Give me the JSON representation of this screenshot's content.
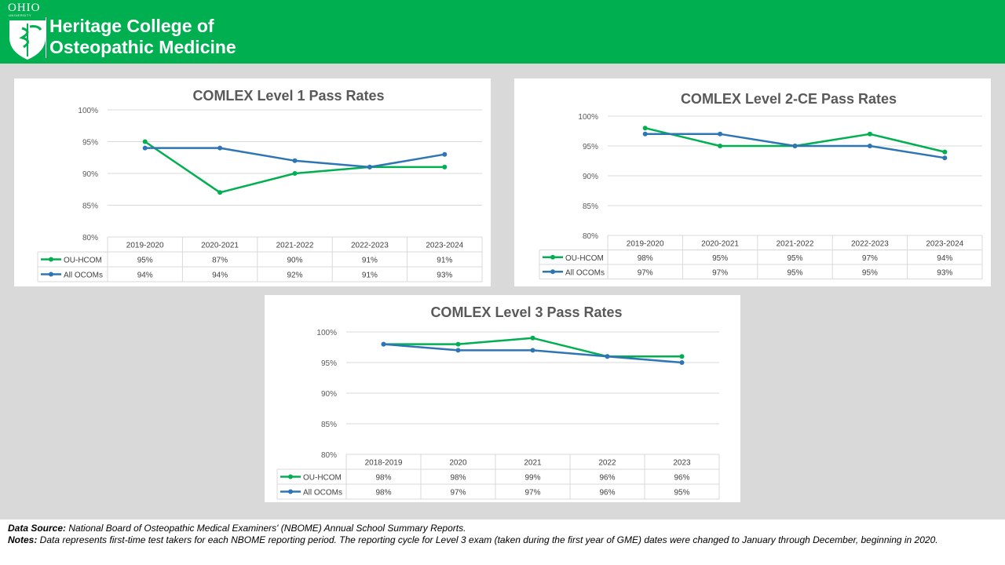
{
  "header": {
    "university": "OHIO",
    "university_sub": "UNIVERSITY",
    "college_line1": "Heritage College of",
    "college_line2": "Osteopathic Medicine"
  },
  "colors": {
    "header_green": "#00b050",
    "ou_hcom": "#00b050",
    "all_ocoms": "#2e75b6"
  },
  "chart_data": [
    {
      "type": "line",
      "title": "COMLEX Level 1 Pass Rates",
      "categories": [
        "2019-2020",
        "2020-2021",
        "2021-2022",
        "2022-2023",
        "2023-2024"
      ],
      "ylim": [
        80,
        100
      ],
      "yticks": [
        "80%",
        "85%",
        "90%",
        "95%",
        "100%"
      ],
      "grid": true,
      "legend": "data-table",
      "series": [
        {
          "name": "OU-HCOM",
          "values": [
            95,
            87,
            90,
            91,
            91
          ],
          "labels": [
            "95%",
            "87%",
            "90%",
            "91%",
            "91%"
          ]
        },
        {
          "name": "All OCOMs",
          "values": [
            94,
            94,
            92,
            91,
            93
          ],
          "labels": [
            "94%",
            "94%",
            "92%",
            "91%",
            "93%"
          ]
        }
      ]
    },
    {
      "type": "line",
      "title": "COMLEX Level 2-CE Pass Rates",
      "categories": [
        "2019-2020",
        "2020-2021",
        "2021-2022",
        "2022-2023",
        "2023-2024"
      ],
      "ylim": [
        80,
        100
      ],
      "yticks": [
        "80%",
        "85%",
        "90%",
        "95%",
        "100%"
      ],
      "grid": true,
      "legend": "data-table",
      "series": [
        {
          "name": "OU-HCOM",
          "values": [
            98,
            95,
            95,
            97,
            94
          ],
          "labels": [
            "98%",
            "95%",
            "95%",
            "97%",
            "94%"
          ]
        },
        {
          "name": "All OCOMs",
          "values": [
            97,
            97,
            95,
            95,
            93
          ],
          "labels": [
            "97%",
            "97%",
            "95%",
            "95%",
            "93%"
          ]
        }
      ]
    },
    {
      "type": "line",
      "title": "COMLEX Level 3 Pass Rates",
      "categories": [
        "2018-2019",
        "2020",
        "2021",
        "2022",
        "2023"
      ],
      "ylim": [
        80,
        100
      ],
      "yticks": [
        "80%",
        "85%",
        "90%",
        "95%",
        "100%"
      ],
      "grid": true,
      "legend": "data-table",
      "series": [
        {
          "name": "OU-HCOM",
          "values": [
            98,
            98,
            99,
            96,
            96
          ],
          "labels": [
            "98%",
            "98%",
            "99%",
            "96%",
            "96%"
          ]
        },
        {
          "name": "All OCOMs",
          "values": [
            98,
            97,
            97,
            96,
            95
          ],
          "labels": [
            "98%",
            "97%",
            "97%",
            "96%",
            "95%"
          ]
        }
      ]
    }
  ],
  "footer": {
    "source_label": "Data Source:",
    "source_text": " National Board of Osteopathic Medical Examiners' (NBOME) Annual School Summary Reports.",
    "notes_label": "Notes:",
    "notes_text": " Data represents first-time test takers for each NBOME reporting period. The reporting cycle for Level 3 exam (taken during the first year of GME) dates were changed to January through December, beginning in 2020."
  }
}
